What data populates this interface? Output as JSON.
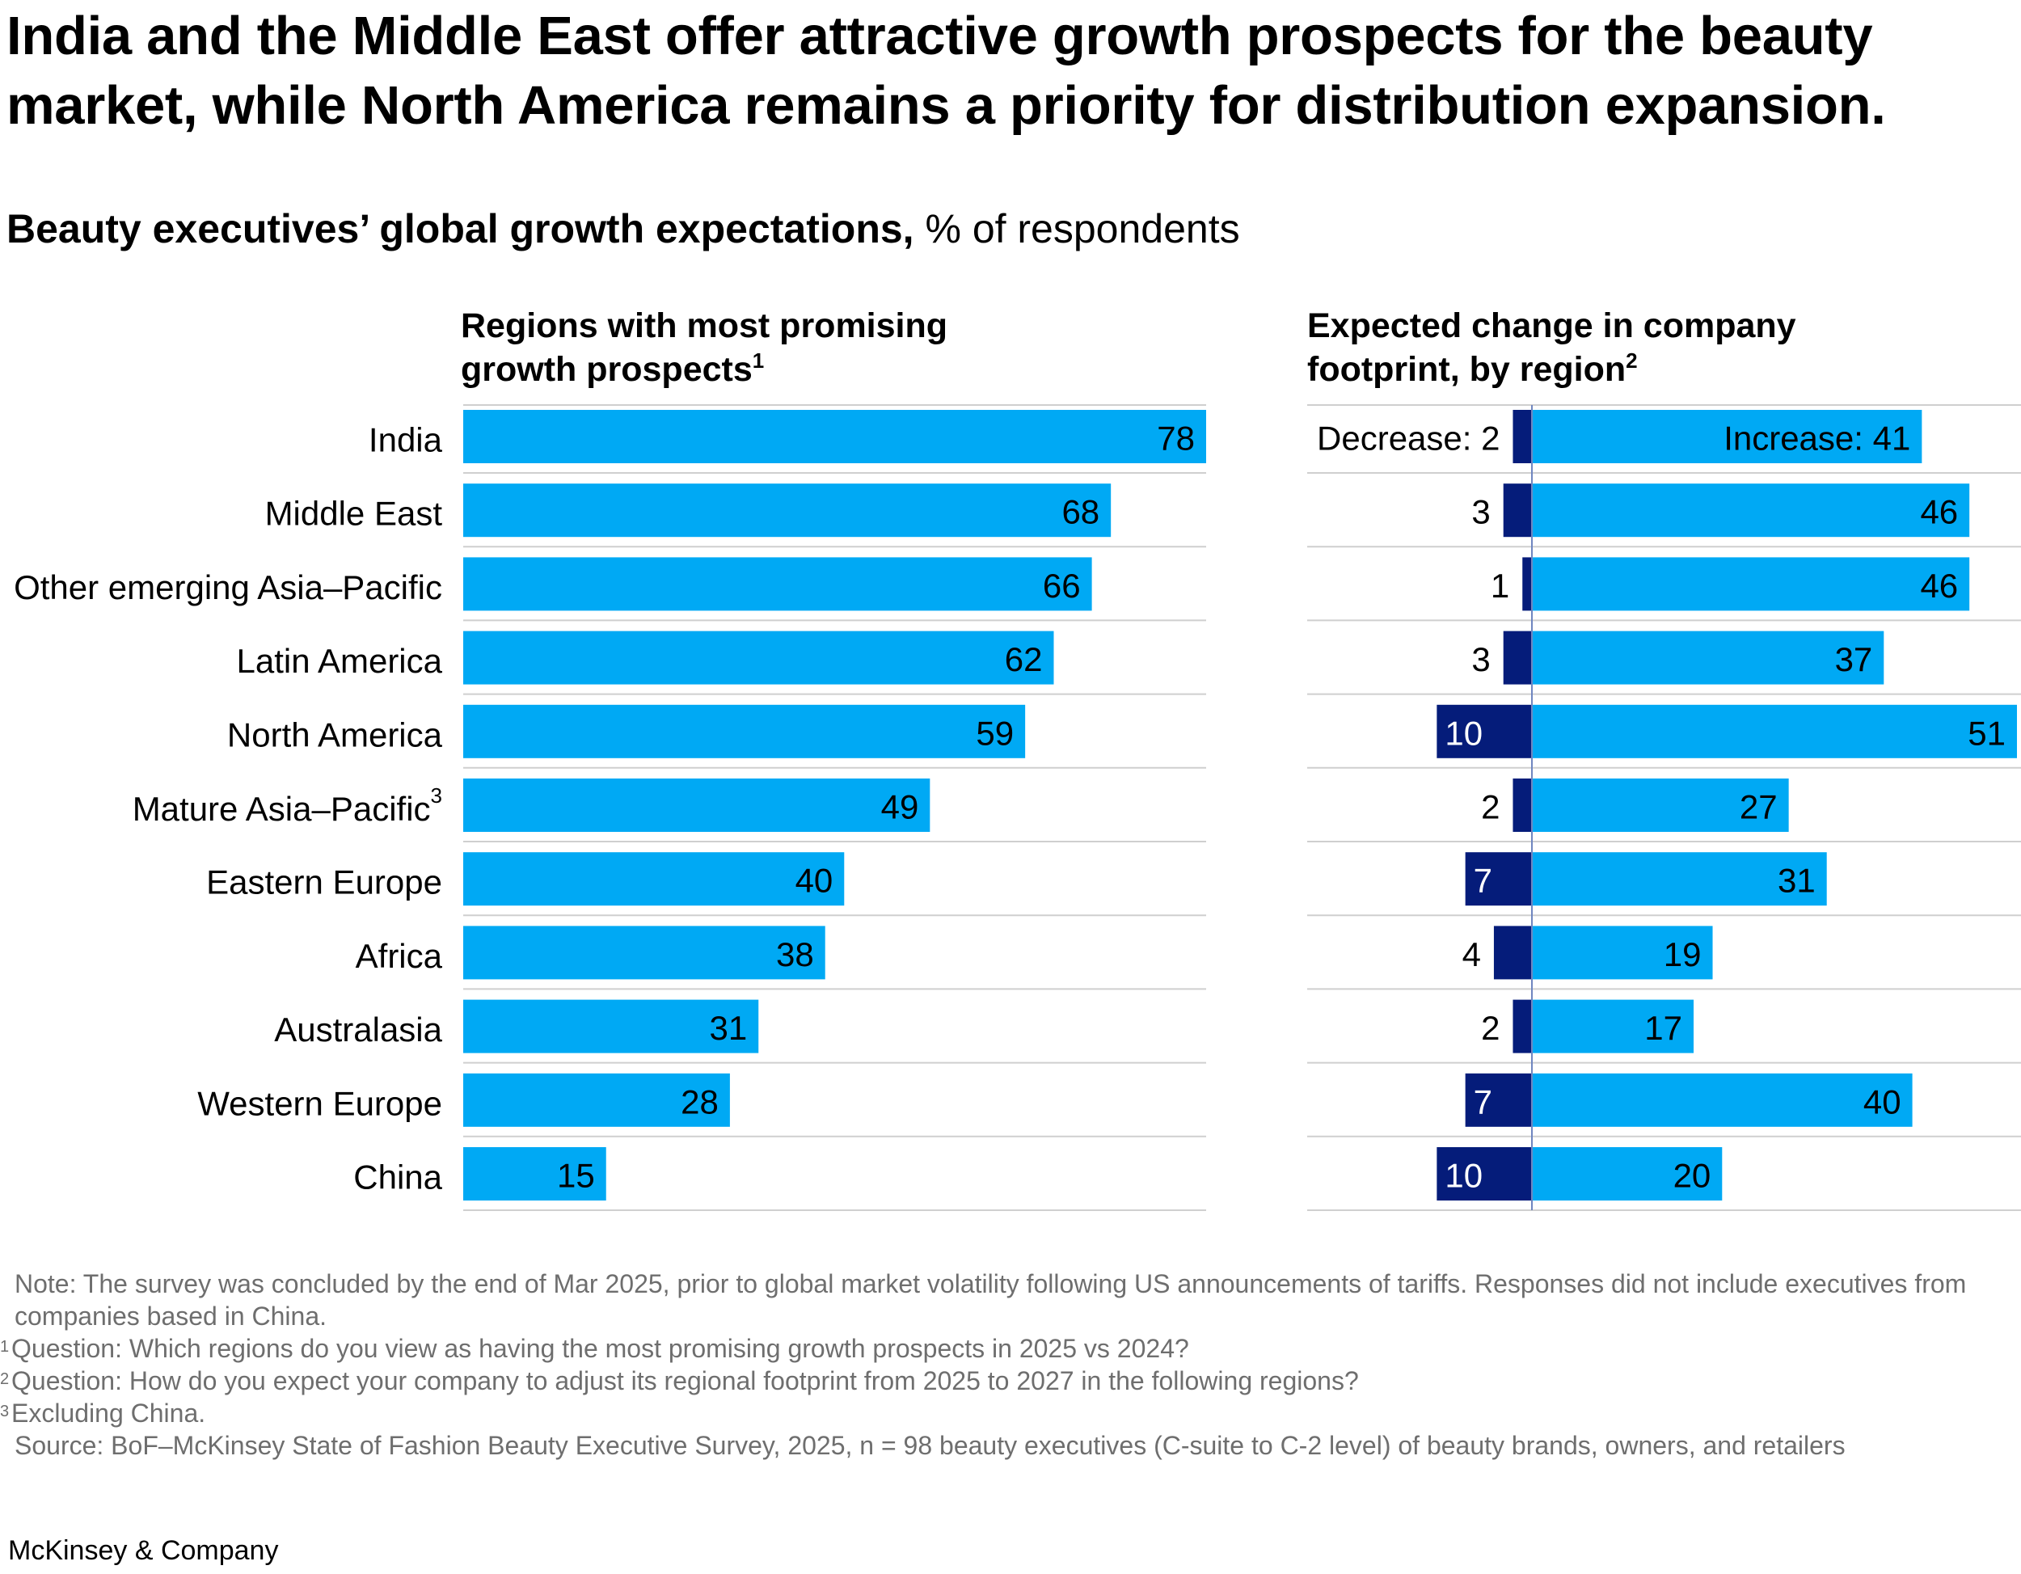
{
  "title": "India and the Middle East offer attractive growth prospects for the beauty market, while North America remains a priority for distribution expansion.",
  "subtitle": {
    "bold": "Beauty executives’ global growth expectations,",
    "unit": "% of respondents"
  },
  "colors": {
    "bar": "#00A9F4",
    "decrease": "#051C7A",
    "divider": "#cfcfcf",
    "axis": "#6f86c0",
    "text": "#000000",
    "note": "#6e6e6e"
  },
  "left_panel": {
    "title_line1": "Regions with most promising",
    "title_line2": "growth prospects",
    "title_note": "1"
  },
  "right_panel": {
    "title_line1": "Expected change in company",
    "title_line2": "footprint, by region",
    "title_note": "2"
  },
  "chart_data": [
    {
      "type": "bar",
      "orientation": "horizontal",
      "title": "Regions with most promising growth prospects",
      "categories": [
        "India",
        "Middle East",
        "Other emerging Asia–Pacific",
        "Latin America",
        "North America",
        "Mature Asia–Pacific",
        "Eastern Europe",
        "Africa",
        "Australasia",
        "Western Europe",
        "China"
      ],
      "category_notes": [
        "",
        "",
        "",
        "",
        "",
        "3",
        "",
        "",
        "",
        "",
        ""
      ],
      "values": [
        78,
        68,
        66,
        62,
        59,
        49,
        40,
        38,
        31,
        28,
        15
      ],
      "unit": "% of respondents",
      "xlim": [
        0,
        78
      ]
    },
    {
      "type": "bar",
      "orientation": "diverging",
      "title": "Expected change in company footprint, by region",
      "categories": [
        "India",
        "Middle East",
        "Other emerging Asia–Pacific",
        "Latin America",
        "North America",
        "Mature Asia–Pacific",
        "Eastern Europe",
        "Africa",
        "Australasia",
        "Western Europe",
        "China"
      ],
      "series": [
        {
          "name": "Decrease",
          "values": [
            2,
            3,
            1,
            3,
            10,
            2,
            7,
            4,
            2,
            7,
            10
          ]
        },
        {
          "name": "Increase",
          "values": [
            41,
            46,
            46,
            37,
            51,
            27,
            31,
            19,
            17,
            40,
            20
          ]
        }
      ],
      "series_label_prefix": [
        "Decrease: ",
        "Increase: "
      ],
      "unit": "% of respondents",
      "xlim": [
        -10,
        51
      ]
    }
  ],
  "notes": {
    "note": "Note: The survey was concluded by the end of Mar 2025, prior to global market volatility following US announcements of tariffs. Responses did not include executives from companies based in China.",
    "footnotes": [
      {
        "n": "1",
        "text": "Question: Which regions do you view as having the most promising growth prospects in 2025 vs 2024?"
      },
      {
        "n": "2",
        "text": "Question: How do you expect your company to adjust its regional footprint from 2025 to 2027 in the following regions?"
      },
      {
        "n": "3",
        "text": "Excluding China."
      }
    ],
    "source": "Source: BoF–McKinsey State of Fashion Beauty Executive Survey, 2025, n = 98 beauty executives (C-suite to C-2 level) of beauty brands, owners, and retailers"
  },
  "brand": "McKinsey & Company"
}
